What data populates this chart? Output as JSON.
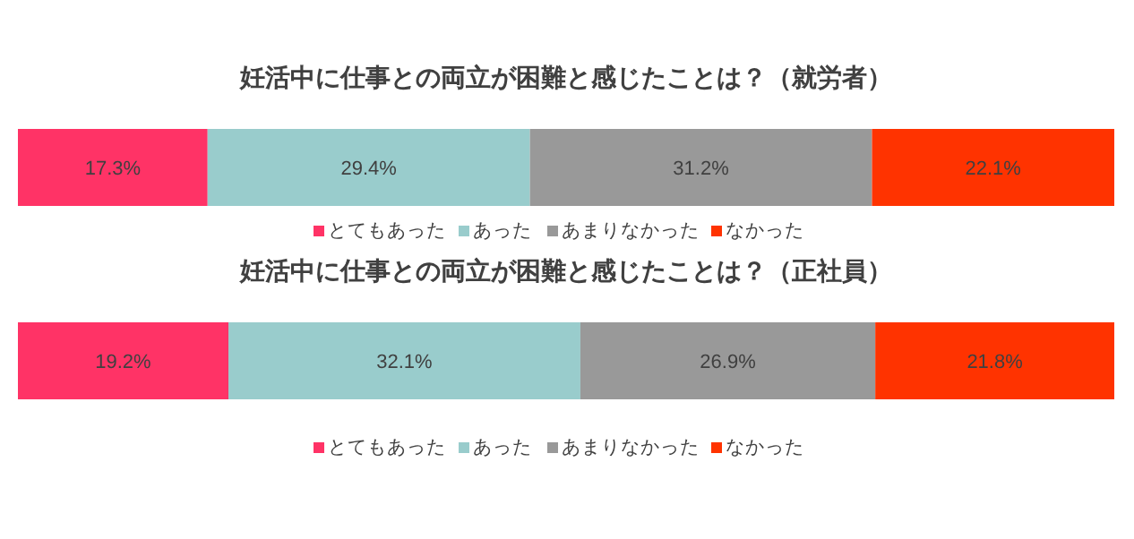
{
  "chart_data": [
    {
      "type": "bar",
      "orientation": "horizontal",
      "stacked": true,
      "title": "妊活中に仕事との両立が困難と感じたことは？（就労者）",
      "categories": [
        null
      ],
      "xlim": [
        0,
        100
      ],
      "legend": "bottom",
      "series": [
        {
          "name": "とてもあった",
          "color": "#ff3366",
          "values": [
            17.3
          ],
          "value_labels": [
            "17.3%"
          ]
        },
        {
          "name": "あった",
          "color": "#99cccc",
          "values": [
            29.4
          ],
          "value_labels": [
            "29.4%"
          ]
        },
        {
          "name": "あまりなかった",
          "color": "#999999",
          "values": [
            31.2
          ],
          "value_labels": [
            "31.2%"
          ]
        },
        {
          "name": "なかった",
          "color": "#ff3300",
          "values": [
            22.1
          ],
          "value_labels": [
            "22.1%"
          ]
        }
      ]
    },
    {
      "type": "bar",
      "orientation": "horizontal",
      "stacked": true,
      "title": "妊活中に仕事との両立が困難と感じたことは？（正社員）",
      "categories": [
        null
      ],
      "xlim": [
        0,
        100
      ],
      "legend": "bottom",
      "series": [
        {
          "name": "とてもあった",
          "color": "#ff3366",
          "values": [
            19.2
          ],
          "value_labels": [
            "19.2%"
          ]
        },
        {
          "name": "あった",
          "color": "#99cccc",
          "values": [
            32.1
          ],
          "value_labels": [
            "32.1%"
          ]
        },
        {
          "name": "あまりなかった",
          "color": "#999999",
          "values": [
            26.9
          ],
          "value_labels": [
            "26.9%"
          ]
        },
        {
          "name": "なかった",
          "color": "#ff3300",
          "values": [
            21.8
          ],
          "value_labels": [
            "21.8%"
          ]
        }
      ]
    }
  ]
}
